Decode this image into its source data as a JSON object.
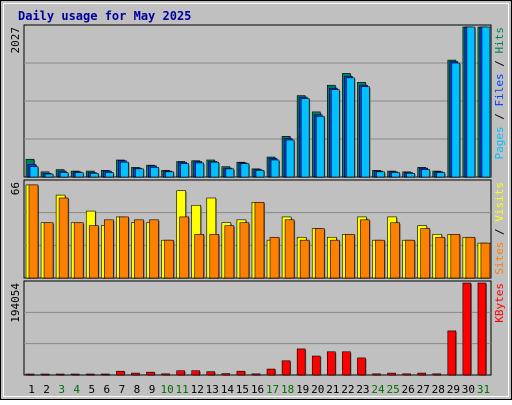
{
  "chart_data": {
    "type": "bar",
    "title": "Daily usage for May 2025",
    "categories": [
      "1",
      "2",
      "3",
      "4",
      "5",
      "6",
      "7",
      "8",
      "9",
      "10",
      "11",
      "12",
      "13",
      "14",
      "15",
      "16",
      "17",
      "18",
      "19",
      "20",
      "21",
      "22",
      "23",
      "24",
      "25",
      "26",
      "27",
      "28",
      "29",
      "30",
      "31"
    ],
    "weekend_days": [
      "3",
      "4",
      "10",
      "11",
      "17",
      "18",
      "24",
      "25",
      "31"
    ],
    "colors": {
      "background": "#c0c0c0",
      "grid": "#888888",
      "title": "#0000a0",
      "weekday_label": "#000000",
      "weekend_label": "#007000",
      "hits": "#00805c",
      "files": "#0040ff",
      "pages": "#00c0ff",
      "visits": "#ffff00",
      "sites": "#ff8000",
      "kbytes": "#ff0000"
    },
    "panels": [
      {
        "name": "hits-files-pages",
        "ymax_label": "2027",
        "ymax": 2027,
        "legend": [
          "Pages",
          "Files",
          "Hits"
        ],
        "series": [
          {
            "name": "Hits",
            "values": [
              240,
              70,
              100,
              80,
              80,
              90,
              230,
              130,
              160,
              90,
              210,
              220,
              230,
              140,
              200,
              110,
              270,
              550,
              1100,
              880,
              1240,
              1400,
              1280,
              90,
              80,
              70,
              130,
              80,
              1580,
              2027,
              2027
            ]
          },
          {
            "name": "Files",
            "values": [
              170,
              50,
              80,
              70,
              60,
              80,
              220,
              120,
              150,
              80,
              200,
              210,
              210,
              120,
              190,
              100,
              250,
              520,
              1080,
              840,
              1200,
              1360,
              1240,
              80,
              70,
              60,
              120,
              70,
              1560,
              2027,
              2027
            ]
          },
          {
            "name": "Pages",
            "values": [
              140,
              40,
              60,
              60,
              50,
              60,
              200,
              110,
              130,
              70,
              180,
              190,
              200,
              110,
              180,
              90,
              230,
              500,
              1060,
              820,
              1180,
              1340,
              1220,
              70,
              60,
              50,
              100,
              60,
              1540,
              2027,
              2027
            ]
          }
        ]
      },
      {
        "name": "visits-sites",
        "ymax_label": "66",
        "ymax": 66,
        "legend": [
          "Sites",
          "Visits"
        ],
        "series": [
          {
            "name": "Visits",
            "values": [
              64,
              38,
              57,
              38,
              46,
              36,
              42,
              38,
              38,
              26,
              60,
              50,
              55,
              38,
              40,
              52,
              26,
              42,
              28,
              34,
              28,
              30,
              42,
              26,
              42,
              26,
              36,
              30,
              30,
              28,
              24
            ]
          },
          {
            "name": "Sites",
            "values": [
              64,
              38,
              55,
              38,
              36,
              40,
              42,
              40,
              40,
              26,
              42,
              30,
              30,
              36,
              38,
              52,
              28,
              40,
              26,
              34,
              26,
              30,
              40,
              26,
              38,
              26,
              34,
              28,
              30,
              28,
              24
            ]
          }
        ]
      },
      {
        "name": "kbytes",
        "ymax_label": "194054",
        "ymax": 194054,
        "legend": [
          "KBytes"
        ],
        "series": [
          {
            "name": "KBytes",
            "values": [
              1500,
              1500,
              1500,
              1500,
              1500,
              1500,
              8000,
              4000,
              6000,
              2500,
              9000,
              9000,
              7000,
              3000,
              8000,
              2500,
              12500,
              30000,
              55000,
              40000,
              49000,
              49000,
              36000,
              2500,
              4000,
              2500,
              4000,
              2500,
              93000,
              194054,
              194054
            ]
          }
        ]
      }
    ]
  }
}
